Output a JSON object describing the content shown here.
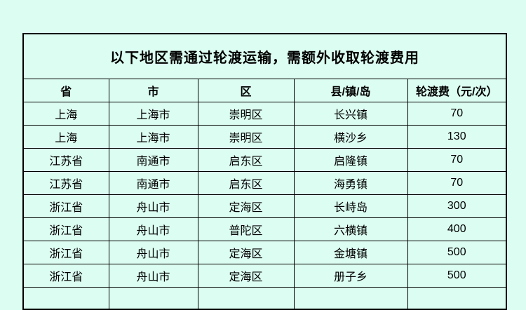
{
  "colors": {
    "background": "#dcfdf1",
    "border": "#000000",
    "text": "#000000"
  },
  "table": {
    "title": "以下地区需通过轮渡运输，需额外收取轮渡费用",
    "columns": [
      "省",
      "市",
      "区",
      "县/镇/岛",
      "轮渡费（元/次）"
    ],
    "rows": [
      [
        "上海",
        "上海市",
        "崇明区",
        "长兴镇",
        "70"
      ],
      [
        "上海",
        "上海市",
        "崇明区",
        "横沙乡",
        "130"
      ],
      [
        "江苏省",
        "南通市",
        "启东区",
        "启隆镇",
        "70"
      ],
      [
        "江苏省",
        "南通市",
        "启东区",
        "海勇镇",
        "70"
      ],
      [
        "浙江省",
        "舟山市",
        "定海区",
        "长峙岛",
        "300"
      ],
      [
        "浙江省",
        "舟山市",
        "普陀区",
        "六横镇",
        "400"
      ],
      [
        "浙江省",
        "舟山市",
        "定海区",
        "金塘镇",
        "500"
      ],
      [
        "浙江省",
        "舟山市",
        "定海区",
        "册子乡",
        "500"
      ]
    ]
  }
}
